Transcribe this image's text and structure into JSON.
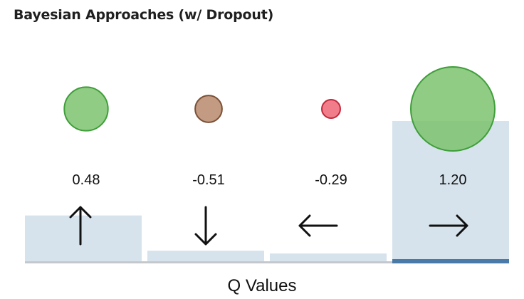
{
  "title": "Bayesian Approaches (w/ Dropout)",
  "chart_data": {
    "type": "bar",
    "xlabel": "Q Values",
    "categories": [
      "up",
      "down",
      "left",
      "right"
    ],
    "value_labels": [
      "0.48",
      "-0.51",
      "-0.29",
      "1.20"
    ],
    "bars": [
      {
        "arrow": "up-arrow-icon",
        "fill_level": 0.33,
        "selected": false
      },
      {
        "arrow": "down-arrow-icon",
        "fill_level": 0.08,
        "selected": false
      },
      {
        "arrow": "left-arrow-icon",
        "fill_level": 0.06,
        "selected": false
      },
      {
        "arrow": "right-arrow-icon",
        "fill_level": 1.0,
        "selected": true
      }
    ],
    "uncertainty_circles": [
      {
        "relative_size": 0.52,
        "color": "#7cc36e",
        "stroke": "#3f9e3a"
      },
      {
        "relative_size": 0.32,
        "color": "#b98a6c",
        "stroke": "#7a4f35"
      },
      {
        "relative_size": 0.22,
        "color": "#ee6675",
        "stroke": "#c0283c"
      },
      {
        "relative_size": 1.0,
        "color": "#7cc36e",
        "stroke": "#3f9e3a"
      }
    ],
    "colors": {
      "bar_fill": "#d6e3ec",
      "baseline": "#c4c8cc",
      "selected_baseline": "#4a7aa7",
      "arrow": "#111111"
    }
  }
}
